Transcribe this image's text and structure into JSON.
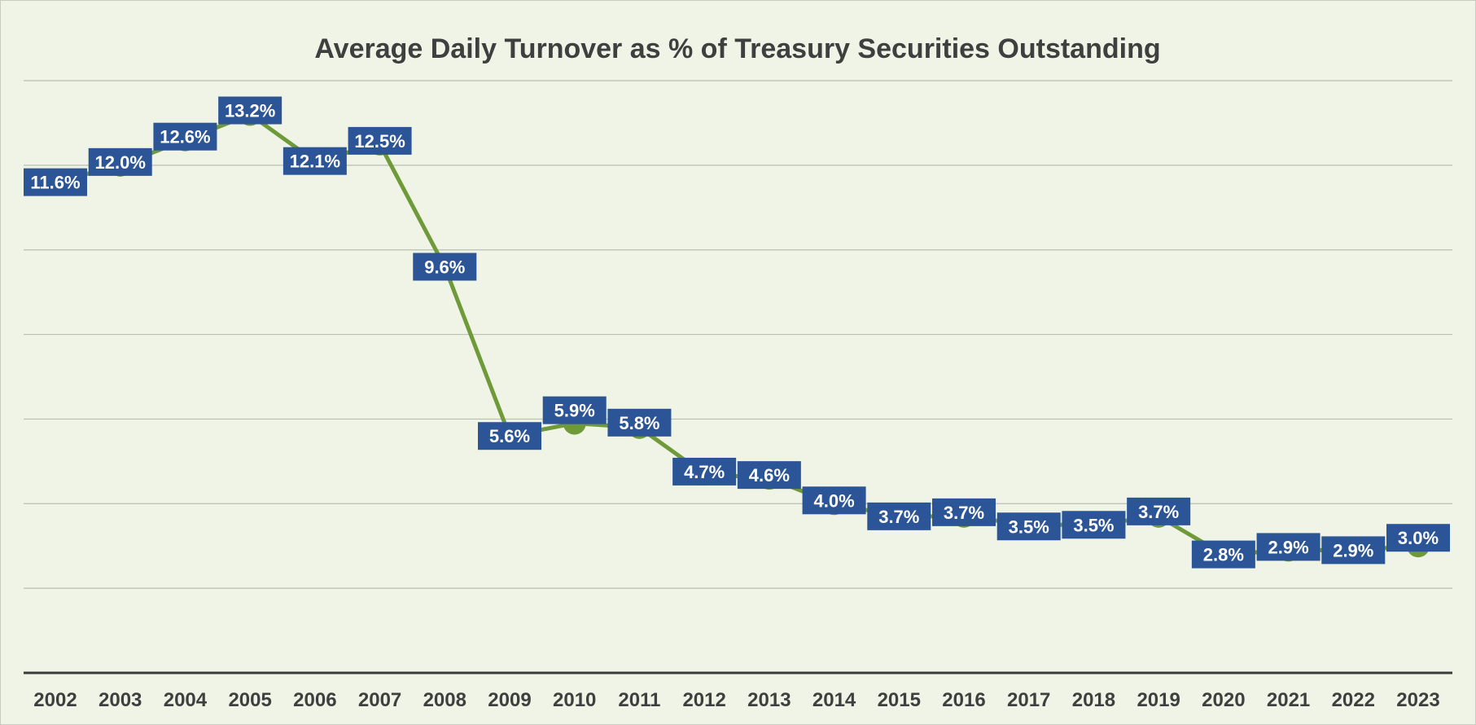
{
  "chart_data": {
    "type": "line",
    "title": "Average Daily Turnover as % of Treasury Securities Outstanding",
    "xlabel": "",
    "ylabel": "",
    "ylim": [
      0,
      14
    ],
    "grid": true,
    "legend": "none",
    "categories": [
      "2002",
      "2003",
      "2004",
      "2005",
      "2006",
      "2007",
      "2008",
      "2009",
      "2010",
      "2011",
      "2012",
      "2013",
      "2014",
      "2015",
      "2016",
      "2017",
      "2018",
      "2019",
      "2020",
      "2021",
      "2022",
      "2023"
    ],
    "series": [
      {
        "values": [
          11.6,
          12.0,
          12.6,
          13.2,
          12.1,
          12.5,
          9.6,
          5.6,
          5.9,
          5.8,
          4.7,
          4.6,
          4.0,
          3.7,
          3.7,
          3.5,
          3.5,
          3.7,
          2.8,
          2.9,
          2.9,
          3.0
        ],
        "labels": [
          "11.6%",
          "12.0%",
          "12.6%",
          "13.2%",
          "12.1%",
          "12.5%",
          "9.6%",
          "5.6%",
          "5.9%",
          "5.8%",
          "4.7%",
          "4.6%",
          "4.0%",
          "3.7%",
          "3.7%",
          "3.5%",
          "3.5%",
          "3.7%",
          "2.8%",
          "2.9%",
          "2.9%",
          "3.0%"
        ]
      }
    ],
    "colors": {
      "background": "#eff4e6",
      "line": "#6f9a3a",
      "marker": "#6f9a3a",
      "label_box": "#2b5597",
      "label_text": "#ffffff",
      "grid": "#b9beb3",
      "axis": "#3a3a3a"
    }
  }
}
